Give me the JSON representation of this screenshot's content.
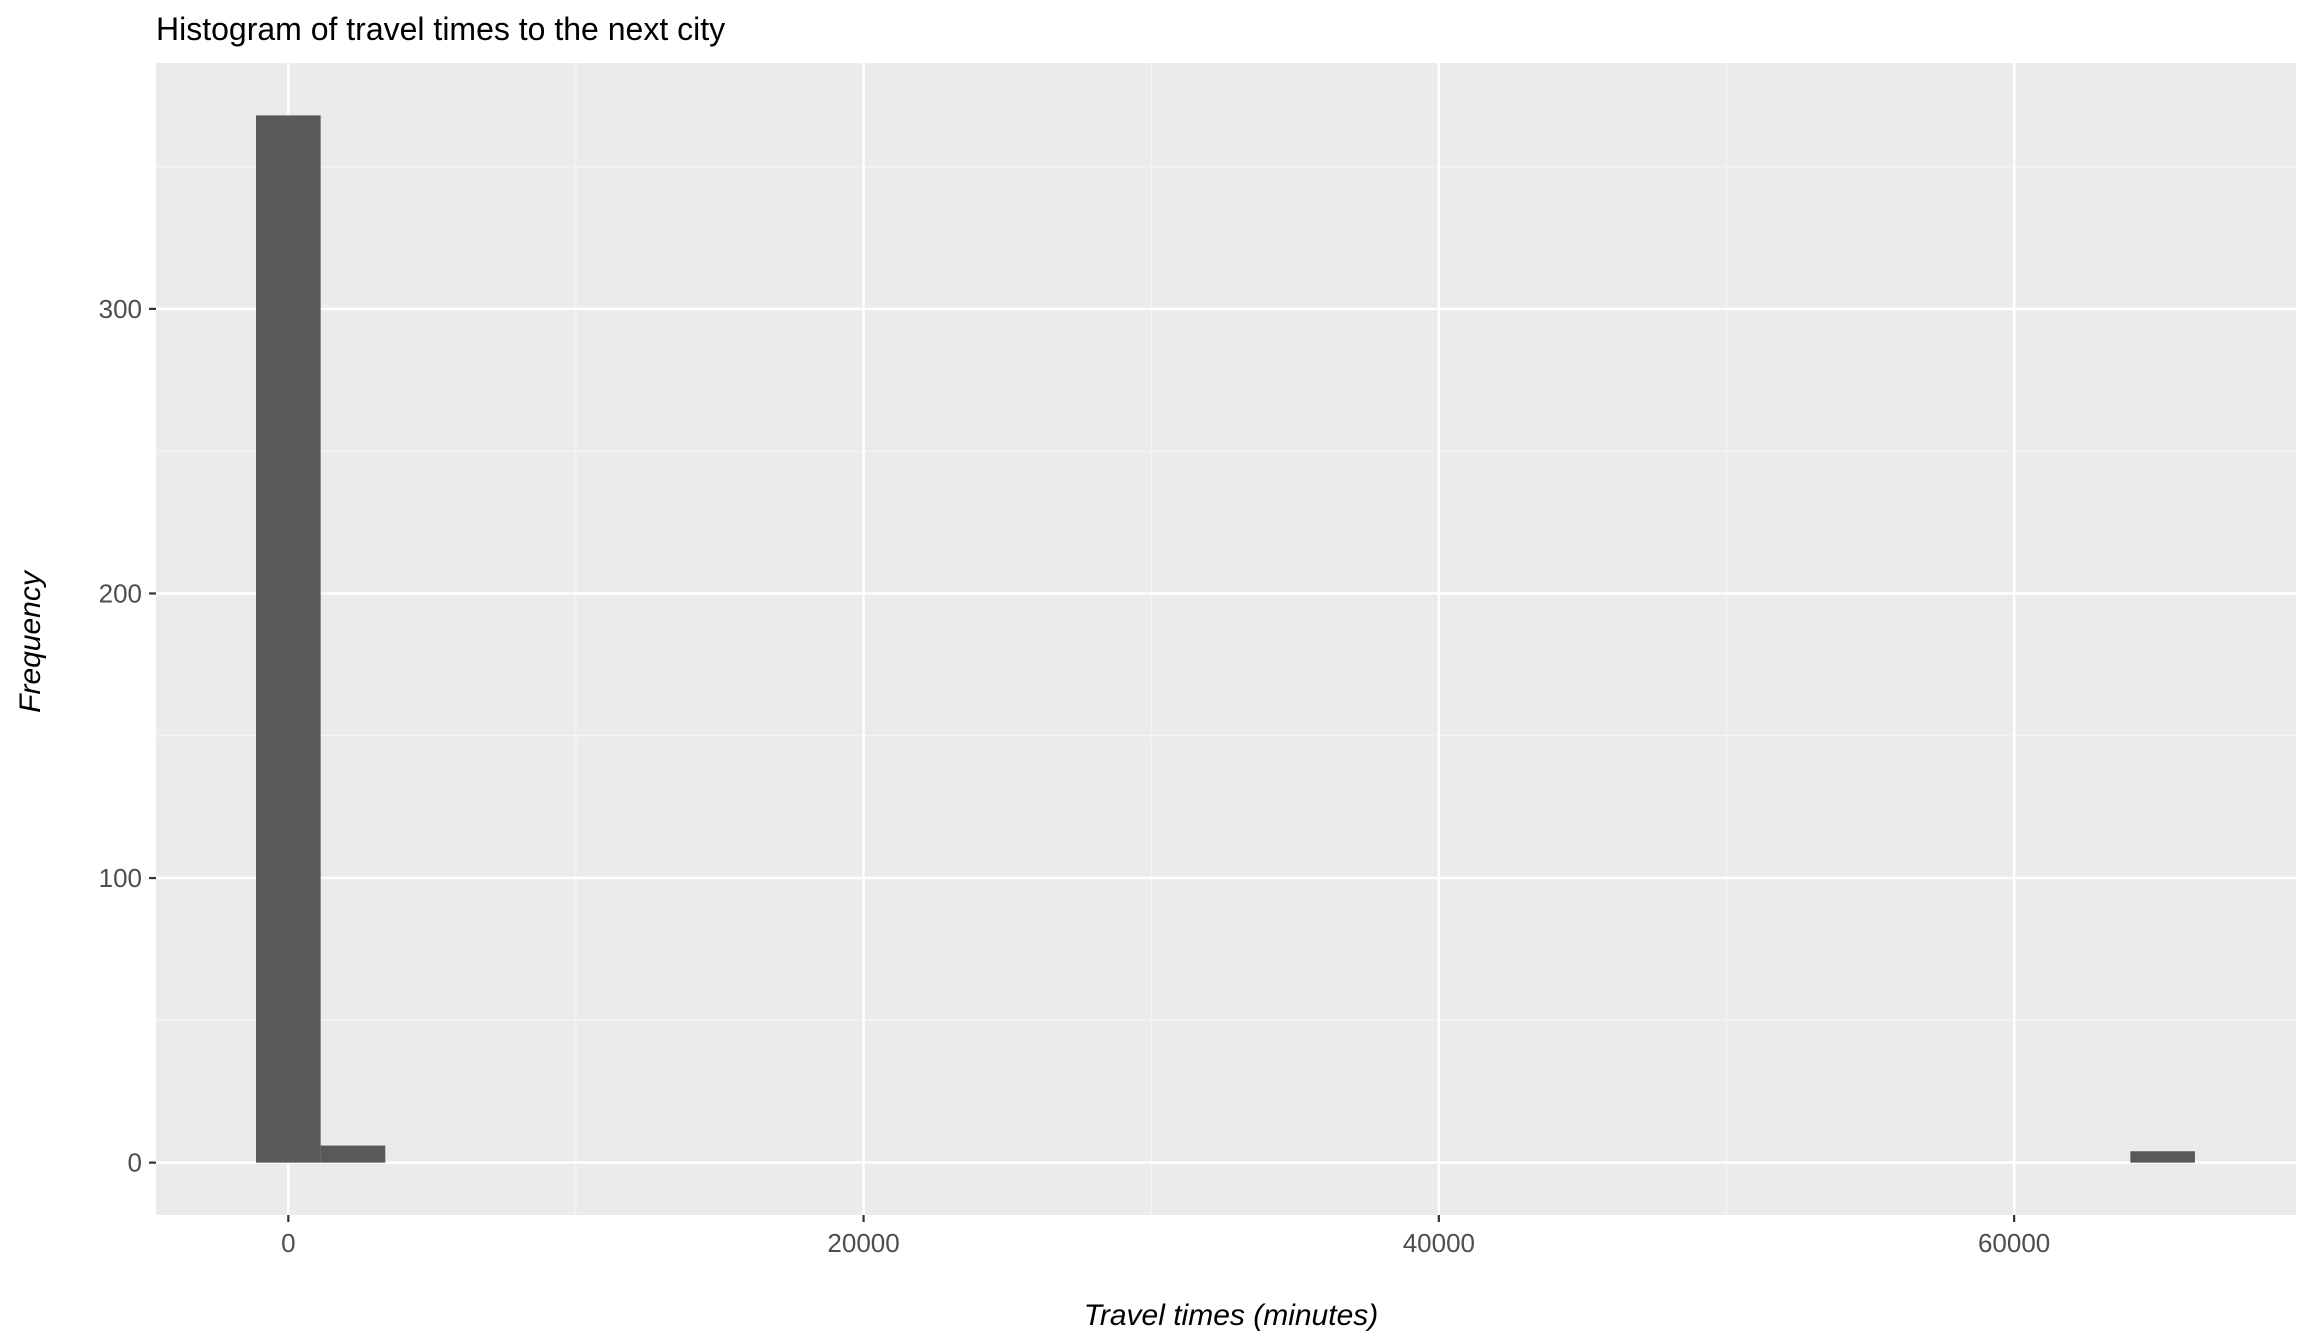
{
  "chart_data": {
    "type": "bar",
    "title": "Histogram of travel times to the next city",
    "xlabel": "Travel times (minutes)",
    "ylabel": "Frequency",
    "bin_width": 2247,
    "bins": [
      {
        "x0": -1123,
        "x1": 1124,
        "count": 368
      },
      {
        "x0": 1124,
        "x1": 3371,
        "count": 6
      },
      {
        "x0": 64040,
        "x1": 66287,
        "count": 4
      }
    ],
    "xlim": [
      -4600,
      69800
    ],
    "ylim": [
      -18.4,
      386.4
    ],
    "x_ticks": [
      0,
      20000,
      40000,
      60000
    ],
    "x_tick_labels": [
      "0",
      "20000",
      "40000",
      "60000"
    ],
    "y_ticks": [
      0,
      100,
      200,
      300
    ],
    "y_tick_labels": [
      "0",
      "100",
      "200",
      "300"
    ],
    "grid": true,
    "legend": "none",
    "colors": {
      "panel_background": "#ebebeb",
      "grid_major": "#ffffff",
      "grid_minor": "#f5f5f5",
      "bar_fill": "#595959",
      "tick_label": "#4d4d4d",
      "tick_mark": "#333333"
    }
  }
}
